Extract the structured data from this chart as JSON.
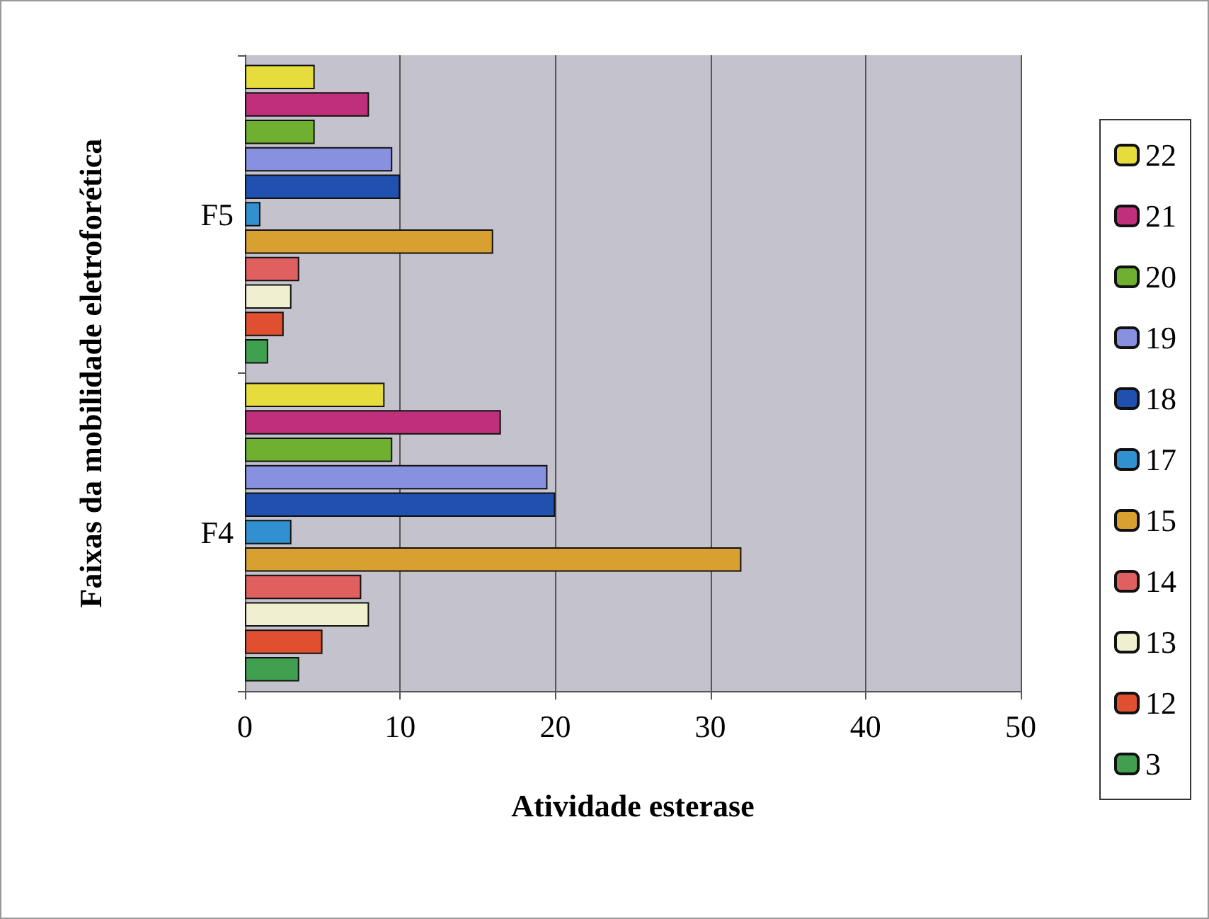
{
  "chart_data": {
    "type": "bar",
    "orientation": "horizontal",
    "xlabel": "Atividade esterase",
    "ylabel": "Faixas da mobilidade eletroforética",
    "categories": [
      "F5",
      "F4"
    ],
    "series": [
      {
        "name": "22",
        "color": "#e6dc3c",
        "values": [
          4.5,
          9
        ]
      },
      {
        "name": "21",
        "color": "#c0307a",
        "values": [
          8,
          16.5
        ]
      },
      {
        "name": "20",
        "color": "#70b030",
        "values": [
          4.5,
          9.5
        ]
      },
      {
        "name": "19",
        "color": "#8890e0",
        "values": [
          9.5,
          19.5
        ]
      },
      {
        "name": "18",
        "color": "#2050b0",
        "values": [
          10,
          20
        ]
      },
      {
        "name": "17",
        "color": "#3090d0",
        "values": [
          1,
          3
        ]
      },
      {
        "name": "15",
        "color": "#d8a030",
        "values": [
          16,
          32
        ]
      },
      {
        "name": "14",
        "color": "#e06060",
        "values": [
          3.5,
          7.5
        ]
      },
      {
        "name": "13",
        "color": "#f0f0d0",
        "values": [
          3,
          8
        ]
      },
      {
        "name": "12",
        "color": "#e05030",
        "values": [
          2.5,
          5
        ]
      },
      {
        "name": "3",
        "color": "#40a050",
        "values": [
          1.5,
          3.5
        ]
      }
    ],
    "xlim": [
      0,
      50
    ],
    "xticks": [
      0,
      10,
      20,
      30,
      40,
      50
    ],
    "grid": "x",
    "legend": "right"
  }
}
